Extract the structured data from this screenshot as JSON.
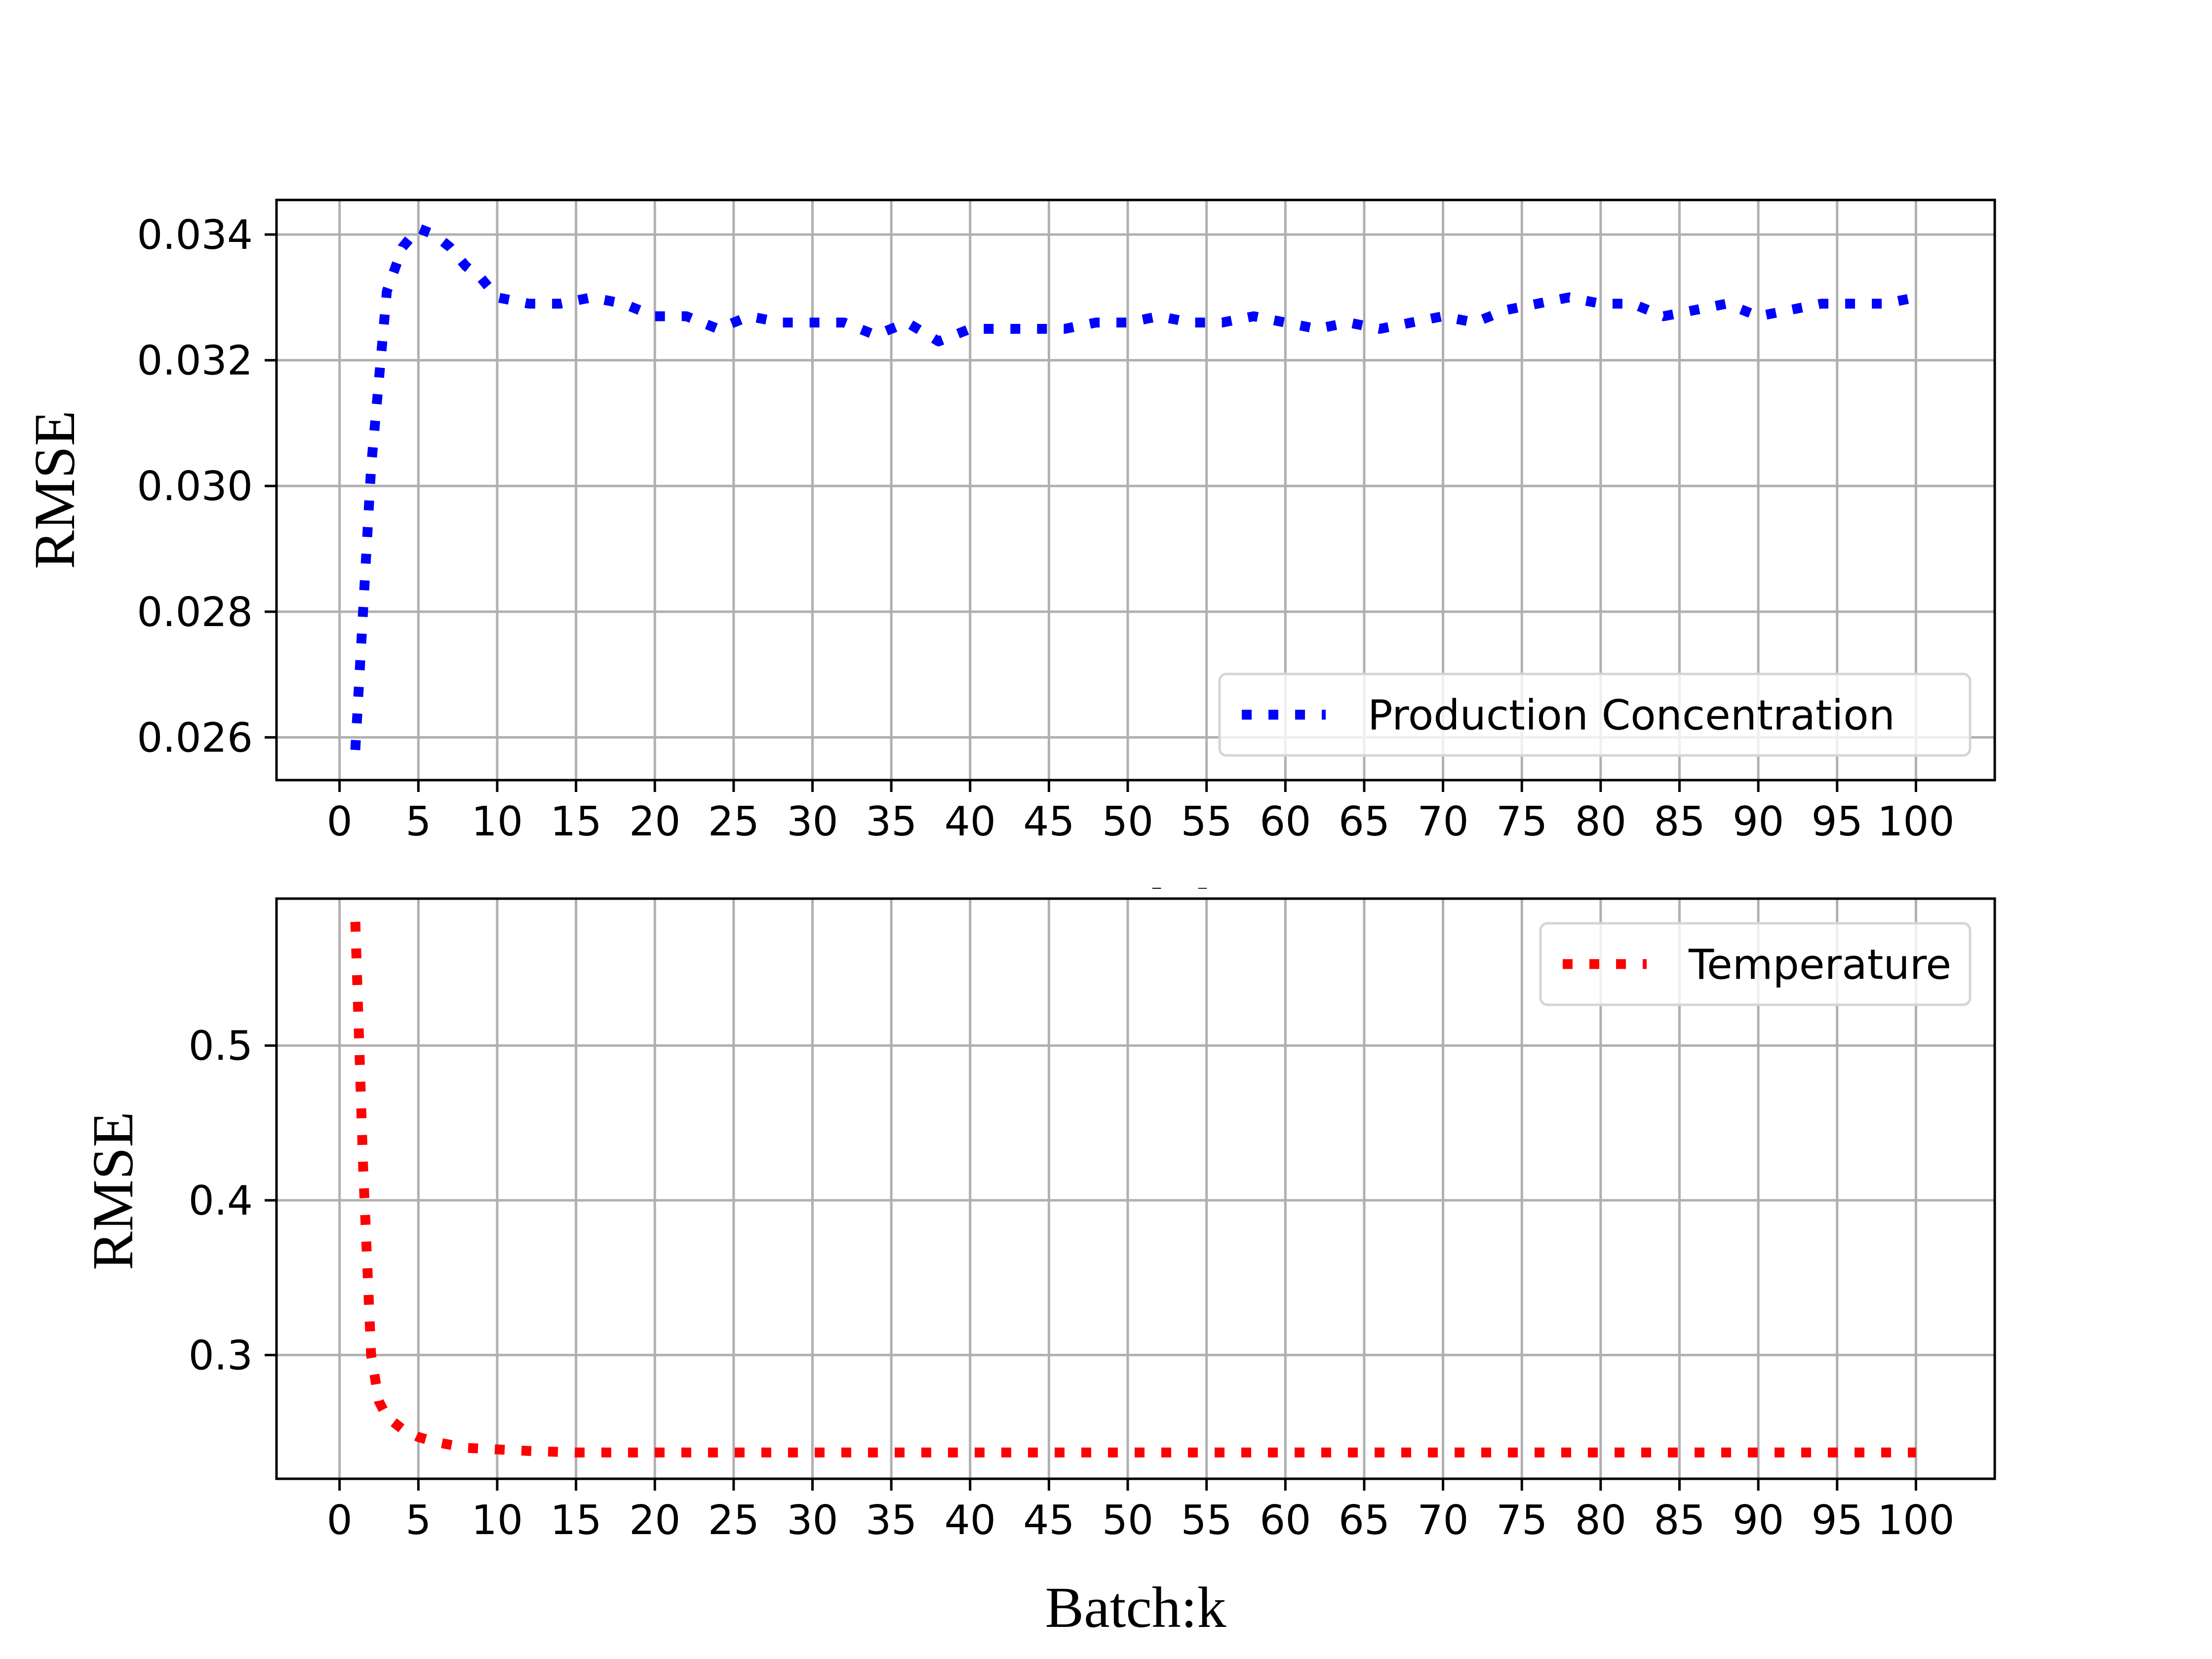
{
  "chart_data": [
    {
      "type": "line",
      "xlabel": "Batch:k",
      "ylabel": "RMSE",
      "xlim": [
        -4,
        105
      ],
      "ylim": [
        0.02532,
        0.03455
      ],
      "xticks": [
        0,
        5,
        10,
        15,
        20,
        25,
        30,
        35,
        40,
        45,
        50,
        55,
        60,
        65,
        70,
        75,
        80,
        85,
        90,
        95,
        100
      ],
      "yticks": [
        0.026,
        0.028,
        0.03,
        0.032,
        0.034
      ],
      "xtick_labels": [
        "0",
        "5",
        "10",
        "15",
        "20",
        "25",
        "30",
        "35",
        "40",
        "45",
        "50",
        "55",
        "60",
        "65",
        "70",
        "75",
        "80",
        "85",
        "90",
        "95",
        "100"
      ],
      "ytick_labels": [
        "0.026",
        "0.028",
        "0.030",
        "0.032",
        "0.034"
      ],
      "grid": true,
      "legend_position": "lower-right",
      "series": [
        {
          "name": "Production Concentration",
          "color": "#0000ff",
          "line_style": "dotted",
          "x": [
            1,
            2,
            3,
            4,
            5,
            6,
            7,
            8,
            9,
            10,
            12,
            14,
            16,
            18,
            20,
            22,
            24,
            26,
            28,
            30,
            32,
            34,
            36,
            38,
            40,
            42,
            44,
            46,
            48,
            50,
            52,
            54,
            56,
            58,
            60,
            62,
            64,
            66,
            68,
            70,
            72,
            74,
            76,
            78,
            80,
            82,
            84,
            86,
            88,
            90,
            92,
            94,
            96,
            98,
            100
          ],
          "values": [
            0.0258,
            0.0303,
            0.0331,
            0.0338,
            0.0341,
            0.034,
            0.0338,
            0.0335,
            0.0333,
            0.033,
            0.0329,
            0.0329,
            0.033,
            0.0329,
            0.0327,
            0.0327,
            0.0325,
            0.0327,
            0.0326,
            0.0326,
            0.0326,
            0.0324,
            0.0326,
            0.0323,
            0.0325,
            0.0325,
            0.0325,
            0.0325,
            0.0326,
            0.0326,
            0.0327,
            0.0326,
            0.0326,
            0.0327,
            0.0326,
            0.0325,
            0.0326,
            0.0325,
            0.0326,
            0.0327,
            0.0326,
            0.0328,
            0.0329,
            0.033,
            0.0329,
            0.0329,
            0.0327,
            0.0328,
            0.0329,
            0.0327,
            0.0328,
            0.0329,
            0.0329,
            0.0329,
            0.033
          ]
        }
      ]
    },
    {
      "type": "line",
      "xlabel": "Batch:k",
      "ylabel": "RMSE",
      "xlim": [
        -4,
        105
      ],
      "ylim": [
        0.22,
        0.595
      ],
      "xticks": [
        0,
        5,
        10,
        15,
        20,
        25,
        30,
        35,
        40,
        45,
        50,
        55,
        60,
        65,
        70,
        75,
        80,
        85,
        90,
        95,
        100
      ],
      "yticks": [
        0.3,
        0.4,
        0.5
      ],
      "xtick_labels": [
        "0",
        "5",
        "10",
        "15",
        "20",
        "25",
        "30",
        "35",
        "40",
        "45",
        "50",
        "55",
        "60",
        "65",
        "70",
        "75",
        "80",
        "85",
        "90",
        "95",
        "100"
      ],
      "ytick_labels": [
        "0.3",
        "0.4",
        "0.5"
      ],
      "grid": true,
      "legend_position": "upper-right",
      "series": [
        {
          "name": "Temperature",
          "color": "#ff0000",
          "line_style": "dotted",
          "x": [
            1,
            1.5,
            2,
            2.5,
            3,
            4,
            5,
            6,
            7,
            8,
            10,
            12,
            15,
            20,
            30,
            40,
            50,
            60,
            70,
            80,
            90,
            100
          ],
          "values": [
            0.58,
            0.42,
            0.3,
            0.27,
            0.26,
            0.252,
            0.247,
            0.244,
            0.242,
            0.24,
            0.239,
            0.238,
            0.237,
            0.237,
            0.237,
            0.237,
            0.237,
            0.237,
            0.237,
            0.237,
            0.237,
            0.237
          ]
        }
      ]
    }
  ]
}
